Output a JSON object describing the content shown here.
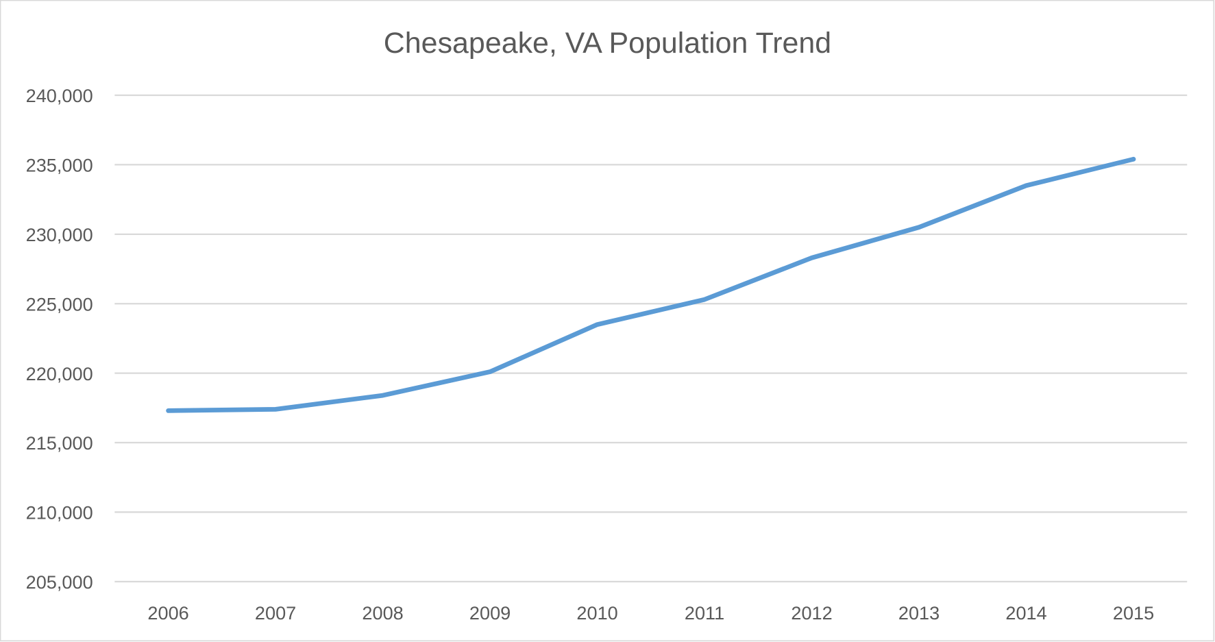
{
  "chart_data": {
    "type": "line",
    "title": "Chesapeake, VA Population Trend",
    "xlabel": "",
    "ylabel": "",
    "categories": [
      "2006",
      "2007",
      "2008",
      "2009",
      "2010",
      "2011",
      "2012",
      "2013",
      "2014",
      "2015"
    ],
    "series": [
      {
        "values": [
          217300,
          217400,
          218400,
          220100,
          223500,
          225300,
          228300,
          230500,
          233500,
          235400
        ]
      }
    ],
    "ylim": [
      205000,
      240000
    ],
    "yticks": [
      205000,
      210000,
      215000,
      220000,
      225000,
      230000,
      235000,
      240000
    ],
    "ytick_labels": [
      "205,000",
      "210,000",
      "215,000",
      "220,000",
      "225,000",
      "230,000",
      "235,000",
      "240,000"
    ],
    "grid": true,
    "legend": "none",
    "colors": {
      "line": "#5B9BD5",
      "grid": "#D9D9D9",
      "text": "#595959",
      "border": "#D9D9D9"
    }
  }
}
